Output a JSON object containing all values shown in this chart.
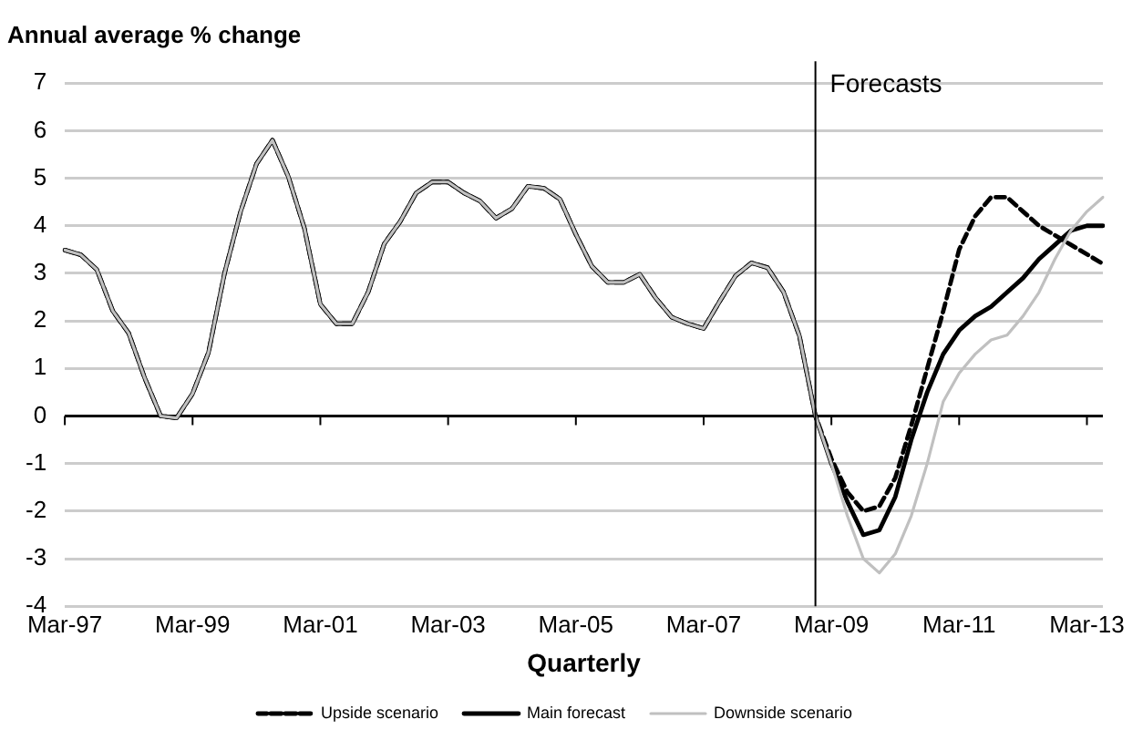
{
  "chart_data": {
    "type": "line",
    "ylabel": "Annual average % change",
    "xlabel": "Quarterly",
    "categories": [
      "Mar-97",
      null,
      null,
      null,
      null,
      null,
      null,
      null,
      "Mar-99",
      null,
      null,
      null,
      null,
      null,
      null,
      null,
      "Mar-01",
      null,
      null,
      null,
      null,
      null,
      null,
      null,
      "Mar-03",
      null,
      null,
      null,
      null,
      null,
      null,
      null,
      "Mar-05",
      null,
      null,
      null,
      null,
      null,
      null,
      null,
      "Mar-07",
      null,
      null,
      null,
      null,
      null,
      null,
      null,
      "Mar-09",
      null,
      null,
      null,
      null,
      null,
      null,
      null,
      "Mar-11",
      null,
      null,
      null,
      null,
      null,
      null,
      null,
      "Mar-13",
      null
    ],
    "series": [
      {
        "name": "Upside scenario",
        "color": "#000000",
        "line_style": "dashed",
        "values": [
          3.49,
          3.39,
          3.08,
          2.21,
          1.74,
          0.8,
          0,
          -0.04,
          0.47,
          1.34,
          3.0,
          4.29,
          5.3,
          5.8,
          5.03,
          3.95,
          2.35,
          1.94,
          1.94,
          2.61,
          3.62,
          4.09,
          4.69,
          4.92,
          4.92,
          4.69,
          4.52,
          4.16,
          4.36,
          4.83,
          4.79,
          4.56,
          3.82,
          3.15,
          2.81,
          2.81,
          2.98,
          2.48,
          2.08,
          1.94,
          1.84,
          2.41,
          2.95,
          3.22,
          3.12,
          2.61,
          1.68,
          0,
          -0.9,
          -1.6,
          -2.0,
          -1.9,
          -1.3,
          -0.2,
          1.0,
          2.2,
          3.5,
          4.2,
          4.6,
          4.6,
          4.3,
          4.0,
          3.8,
          3.6,
          3.4,
          3.2
        ]
      },
      {
        "name": "Main forecast",
        "color": "#000000",
        "line_style": "solid",
        "values": [
          3.49,
          3.39,
          3.08,
          2.21,
          1.74,
          0.8,
          0,
          -0.04,
          0.47,
          1.34,
          3.0,
          4.29,
          5.3,
          5.8,
          5.03,
          3.95,
          2.35,
          1.94,
          1.94,
          2.61,
          3.62,
          4.09,
          4.69,
          4.92,
          4.92,
          4.69,
          4.52,
          4.16,
          4.36,
          4.83,
          4.79,
          4.56,
          3.82,
          3.15,
          2.81,
          2.81,
          2.98,
          2.48,
          2.08,
          1.94,
          1.84,
          2.41,
          2.95,
          3.22,
          3.12,
          2.61,
          1.68,
          0,
          -1.0,
          -1.8,
          -2.5,
          -2.4,
          -1.7,
          -0.5,
          0.5,
          1.3,
          1.8,
          2.1,
          2.3,
          2.6,
          2.9,
          3.3,
          3.6,
          3.9,
          4.0,
          4.0
        ]
      },
      {
        "name": "Downside scenario",
        "color": "#c0c0c0",
        "line_style": "solid",
        "values": [
          3.49,
          3.39,
          3.08,
          2.21,
          1.74,
          0.8,
          0,
          -0.04,
          0.47,
          1.34,
          3.0,
          4.29,
          5.3,
          5.8,
          5.03,
          3.95,
          2.35,
          1.94,
          1.94,
          2.61,
          3.62,
          4.09,
          4.69,
          4.92,
          4.92,
          4.69,
          4.52,
          4.16,
          4.36,
          4.83,
          4.79,
          4.56,
          3.82,
          3.15,
          2.81,
          2.81,
          2.98,
          2.48,
          2.08,
          1.94,
          1.84,
          2.41,
          2.95,
          3.22,
          3.12,
          2.61,
          1.68,
          0,
          -1.0,
          -2.1,
          -3.0,
          -3.3,
          -2.9,
          -2.1,
          -1.0,
          0.3,
          0.9,
          1.3,
          1.6,
          1.7,
          2.1,
          2.6,
          3.3,
          3.9,
          4.3,
          4.6
        ]
      }
    ],
    "ylim": [
      -4,
      7
    ],
    "yticks": [
      -4,
      -3,
      -2,
      -1,
      0,
      1,
      2,
      3,
      4,
      5,
      6,
      7
    ],
    "annotations": [
      "Forecasts"
    ],
    "grid": "y",
    "legend": "bottom",
    "marker": "none"
  }
}
